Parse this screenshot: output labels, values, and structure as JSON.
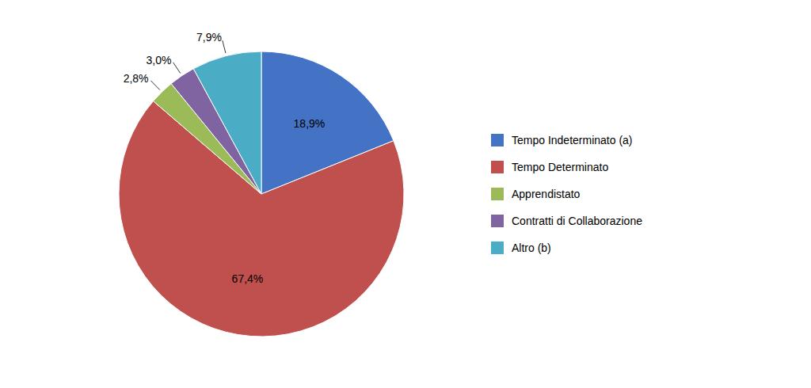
{
  "chart_data": {
    "type": "pie",
    "categories": [
      "Tempo Indeterminato (a)",
      "Tempo Determinato",
      "Apprendistato",
      "Contratti di Collaborazione",
      "Altro (b)"
    ],
    "values": [
      18.9,
      67.4,
      2.8,
      3.0,
      7.9
    ],
    "value_labels": [
      "18,9%",
      "67,4%",
      "2,8%",
      "3,0%",
      "7,9%"
    ],
    "colors": [
      "#4472C4",
      "#C0504D",
      "#9BBB59",
      "#8064A2",
      "#4BACC6"
    ],
    "data_labels": true,
    "legend": "right"
  }
}
